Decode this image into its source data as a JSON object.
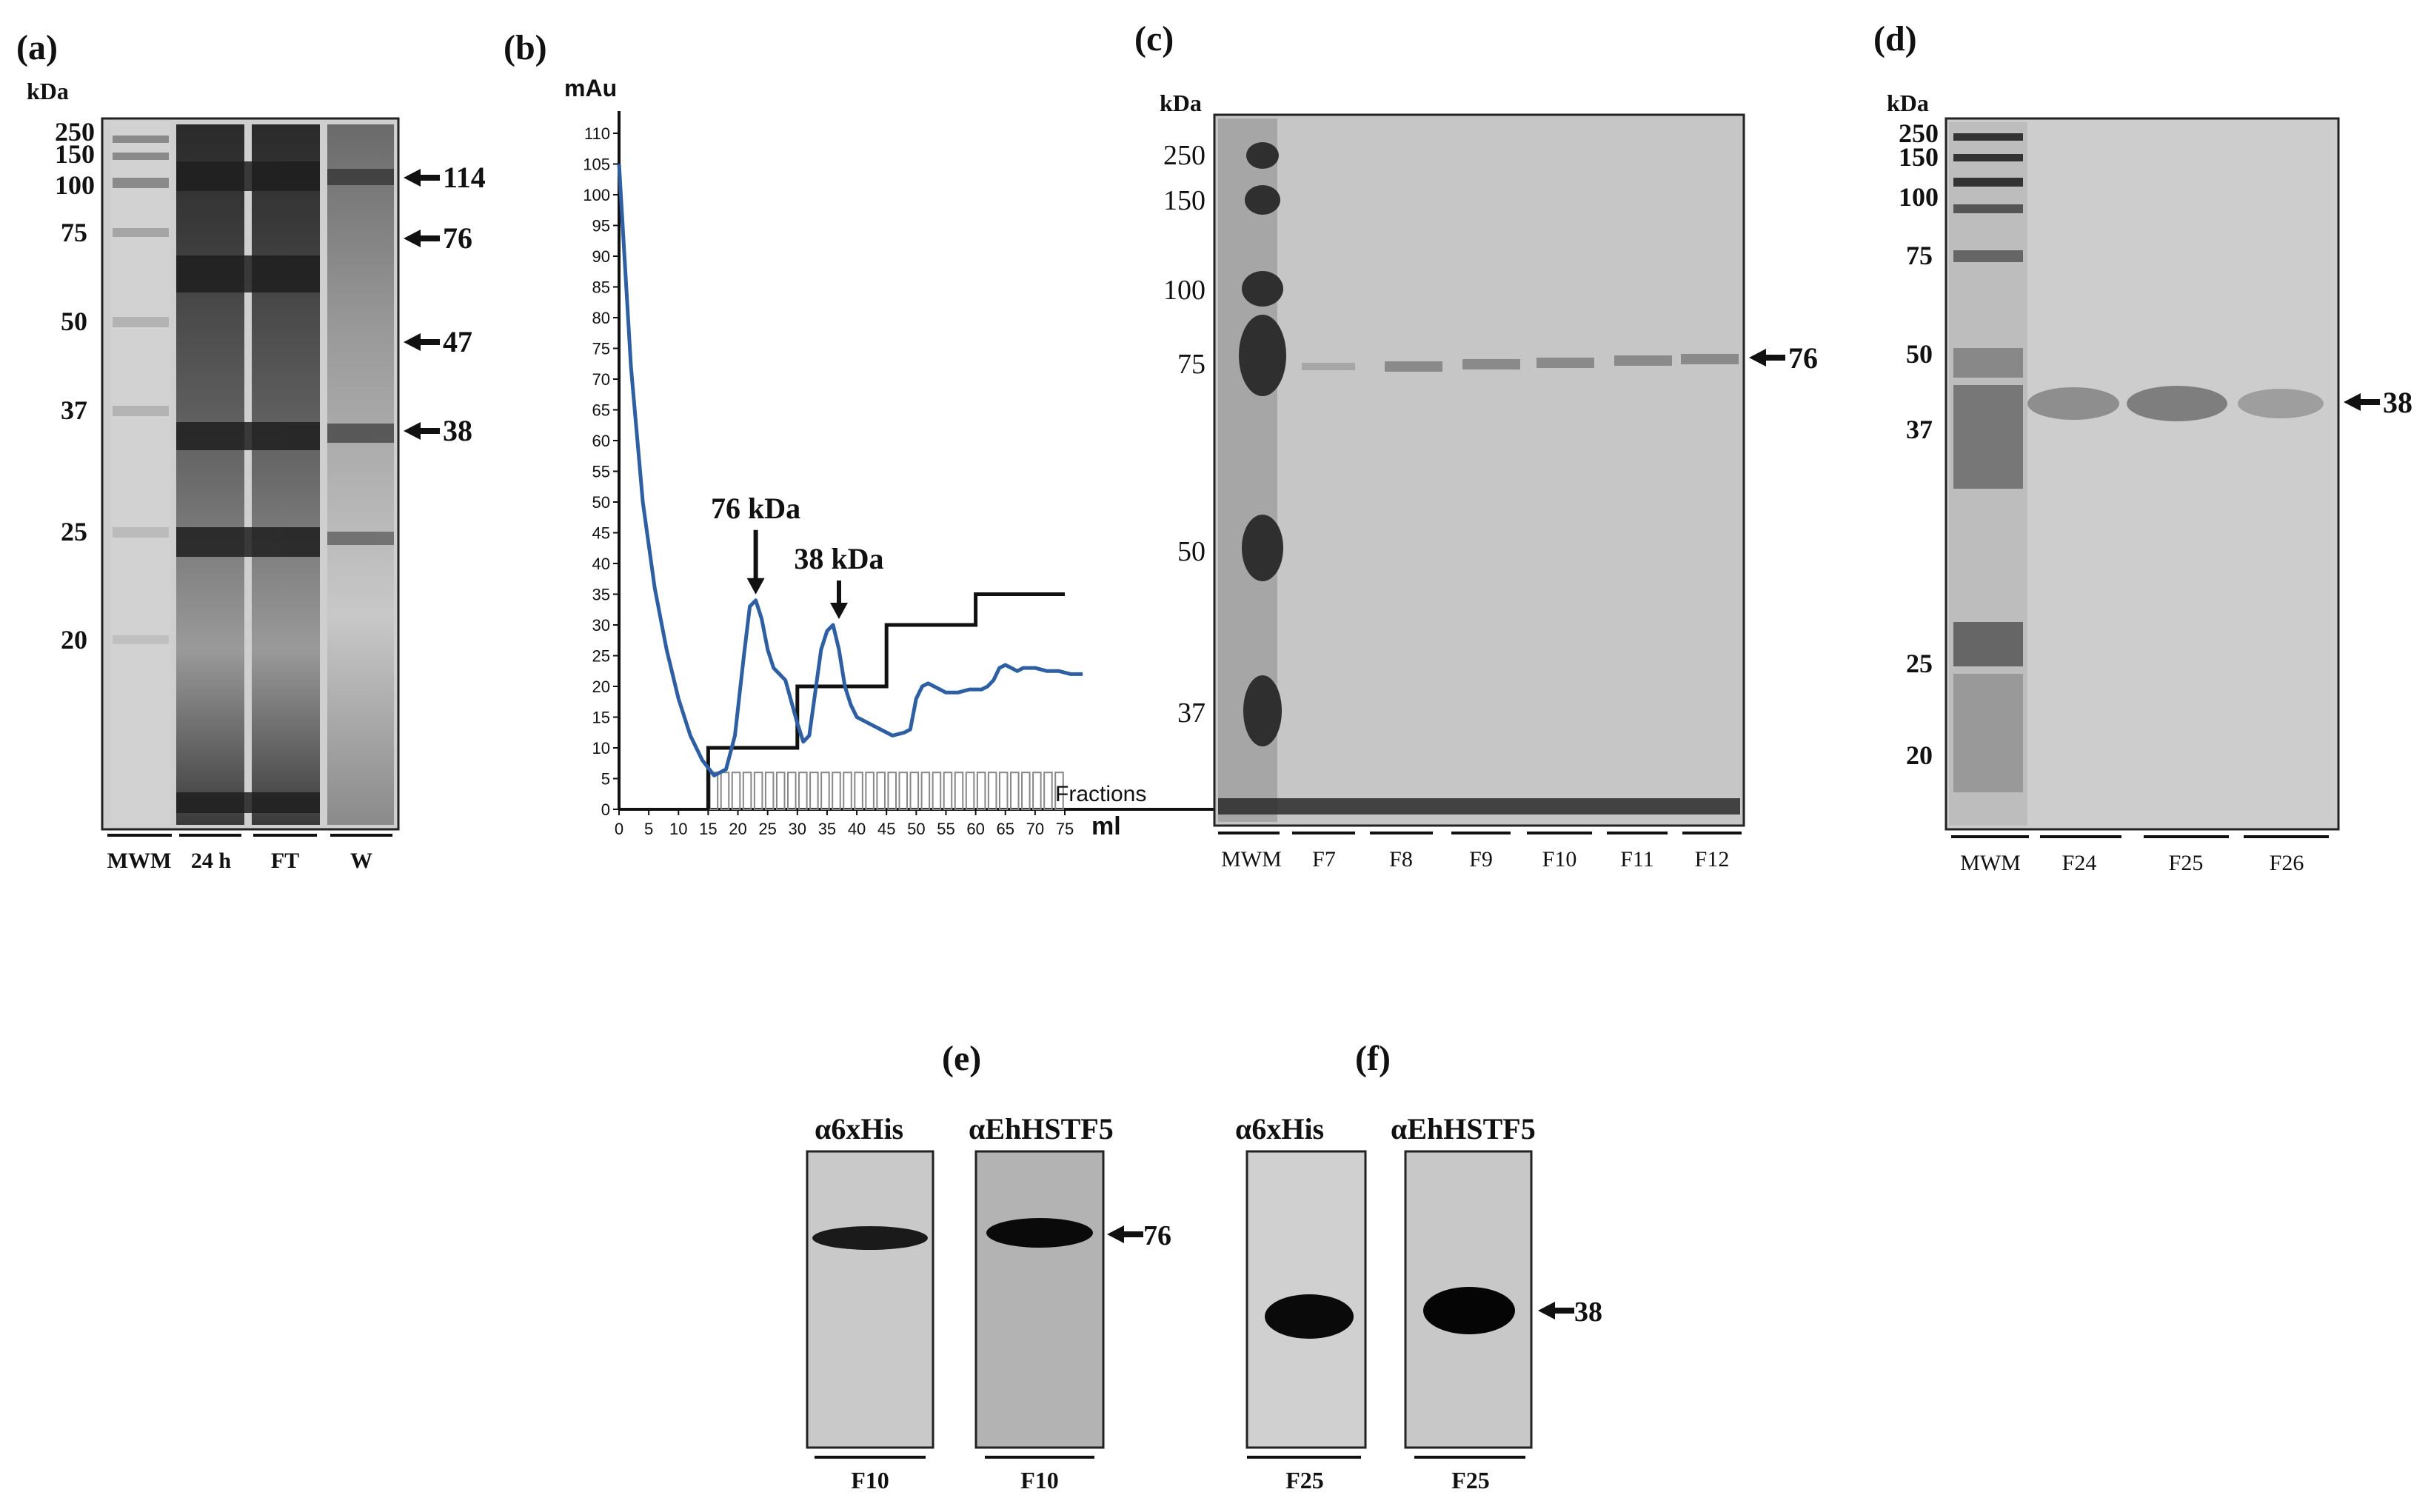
{
  "panels": {
    "a": {
      "label": "(a)",
      "unit": "kDa",
      "markers": [
        "250",
        "150",
        "100",
        "75",
        "50",
        "37",
        "25",
        "20"
      ],
      "arrows": [
        "114",
        "76",
        "47",
        "38"
      ],
      "lanes": [
        "MWM",
        "24 h",
        "FT",
        "W"
      ]
    },
    "b": {
      "label": "(b)",
      "annotations": [
        "76 kDa",
        "38 kDa"
      ],
      "fractions_label": "Fractions"
    },
    "c": {
      "label": "(c)",
      "unit": "kDa",
      "markers": [
        "250",
        "150",
        "100",
        "75",
        "50",
        "37"
      ],
      "arrows": [
        "76"
      ],
      "lanes": [
        "MWM",
        "F7",
        "F8",
        "F9",
        "F10",
        "F11",
        "F12"
      ]
    },
    "d": {
      "label": "(d)",
      "unit": "kDa",
      "markers": [
        "250",
        "150",
        "100",
        "75",
        "50",
        "37",
        "25",
        "20"
      ],
      "arrows": [
        "38"
      ],
      "lanes": [
        "MWM",
        "F24",
        "F25",
        "F26"
      ]
    },
    "e": {
      "label": "(e)",
      "antibodies": [
        "α6xHis",
        "αEhHSTF5"
      ],
      "arrows": [
        "76"
      ],
      "lanes": [
        "F10",
        "F10"
      ]
    },
    "f": {
      "label": "(f)",
      "antibodies": [
        "α6xHis",
        "αEhHSTF5"
      ],
      "arrows": [
        "38"
      ],
      "lanes": [
        "F25",
        "F25"
      ]
    }
  },
  "chart_data": {
    "type": "line",
    "ylabel": "mAu",
    "xlabel": "ml",
    "xlim": [
      0,
      75
    ],
    "ylim": [
      0,
      110
    ],
    "xticks": [
      0,
      5,
      10,
      15,
      20,
      25,
      30,
      35,
      40,
      45,
      50,
      55,
      60,
      65,
      70,
      75
    ],
    "yticks": [
      0,
      5,
      10,
      15,
      20,
      25,
      30,
      35,
      40,
      45,
      50,
      55,
      60,
      65,
      70,
      75,
      80,
      85,
      90,
      95,
      100,
      105,
      110
    ],
    "series": [
      {
        "color": "#2e5fa3",
        "x": [
          0,
          2,
          4,
          6,
          8,
          10,
          12,
          14,
          16,
          18,
          19.5,
          21,
          22,
          23,
          24,
          25,
          26,
          27,
          28,
          30,
          31,
          32,
          33,
          34,
          35,
          36,
          37,
          38,
          39,
          40,
          42,
          44,
          46,
          48,
          49,
          50,
          51,
          52,
          53,
          55,
          57,
          59,
          61,
          62,
          63,
          64,
          65,
          66,
          67,
          68,
          70,
          72,
          74,
          76,
          78
        ],
        "y": [
          105,
          72,
          50,
          36,
          26,
          18,
          12,
          8,
          5.5,
          6.5,
          12,
          25,
          33,
          34,
          31,
          26,
          23,
          22,
          21,
          14,
          11,
          12,
          19,
          26,
          29,
          30,
          26,
          20,
          17,
          15,
          14,
          13,
          12,
          12.5,
          13,
          18,
          20,
          20.5,
          20,
          19,
          19,
          19.5,
          19.5,
          20,
          21,
          23,
          23.5,
          23,
          22.5,
          23,
          23,
          22.5,
          22.5,
          22,
          22
        ]
      },
      {
        "color": "#000000",
        "x": [
          15,
          15,
          30,
          30,
          45,
          45,
          60,
          60,
          75
        ],
        "y": [
          0,
          10,
          10,
          20,
          20,
          30,
          30,
          35,
          35
        ]
      }
    ],
    "annotations": [
      {
        "text": "76 kDa",
        "x": 23,
        "y": 34
      },
      {
        "text": "38 kDa",
        "x": 37,
        "y": 30
      }
    ],
    "fractions": {
      "label": "Fractions",
      "start": 15,
      "end": 75,
      "count": 32
    }
  }
}
